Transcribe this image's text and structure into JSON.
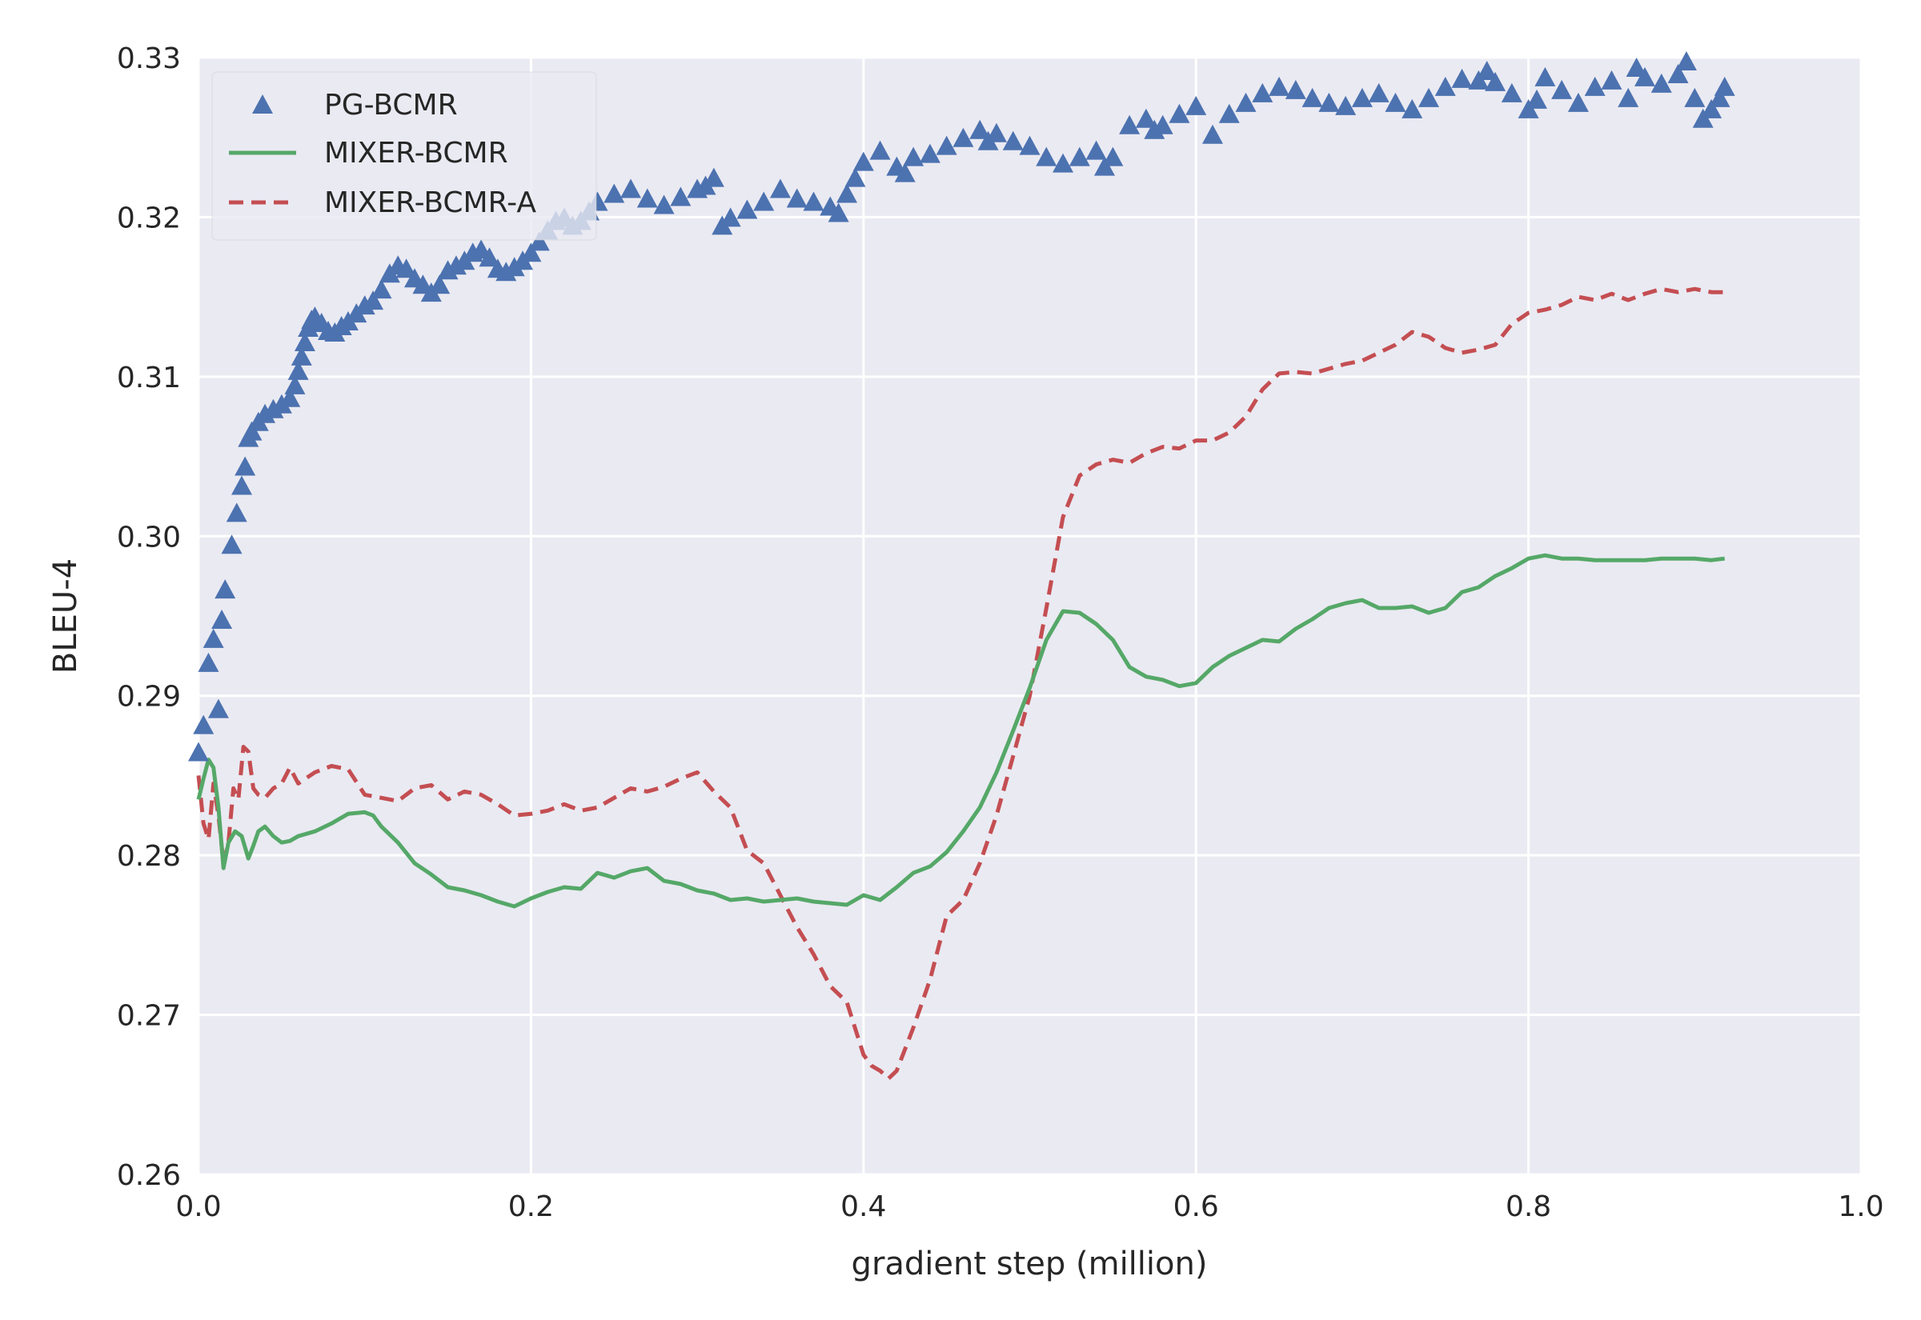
{
  "chart_data": {
    "type": "line",
    "title": "",
    "xlabel": "gradient step (million)",
    "ylabel": "BLEU-4",
    "xlim": [
      0.0,
      1.0
    ],
    "ylim": [
      0.26,
      0.33
    ],
    "xticks": [
      0.0,
      0.2,
      0.4,
      0.6,
      0.8,
      1.0
    ],
    "xtick_labels": [
      "0.0",
      "0.2",
      "0.4",
      "0.6",
      "0.8",
      "1.0"
    ],
    "yticks": [
      0.26,
      0.27,
      0.28,
      0.29,
      0.3,
      0.31,
      0.32,
      0.33
    ],
    "ytick_labels": [
      "0.26",
      "0.27",
      "0.28",
      "0.29",
      "0.30",
      "0.31",
      "0.32",
      "0.33"
    ],
    "grid": true,
    "legend_position": "top-left",
    "colors": {
      "background": "#eaeaf2",
      "grid": "#ffffff",
      "pg": "#4c72b0",
      "mixer": "#55a868",
      "mixer_a": "#c44e52"
    },
    "series": [
      {
        "name": "PG-BCMR",
        "style": "triangle-markers",
        "x": [
          0.0,
          0.003,
          0.006,
          0.009,
          0.012,
          0.014,
          0.016,
          0.02,
          0.023,
          0.026,
          0.028,
          0.03,
          0.032,
          0.036,
          0.04,
          0.045,
          0.05,
          0.055,
          0.058,
          0.06,
          0.062,
          0.064,
          0.066,
          0.068,
          0.07,
          0.074,
          0.078,
          0.082,
          0.086,
          0.09,
          0.095,
          0.1,
          0.105,
          0.11,
          0.115,
          0.12,
          0.125,
          0.13,
          0.135,
          0.14,
          0.145,
          0.15,
          0.155,
          0.16,
          0.165,
          0.17,
          0.175,
          0.18,
          0.185,
          0.19,
          0.195,
          0.2,
          0.205,
          0.21,
          0.215,
          0.22,
          0.225,
          0.23,
          0.235,
          0.24,
          0.25,
          0.26,
          0.27,
          0.28,
          0.29,
          0.3,
          0.305,
          0.31,
          0.315,
          0.32,
          0.33,
          0.34,
          0.35,
          0.36,
          0.37,
          0.38,
          0.385,
          0.39,
          0.395,
          0.4,
          0.41,
          0.42,
          0.425,
          0.43,
          0.44,
          0.45,
          0.46,
          0.47,
          0.475,
          0.48,
          0.49,
          0.5,
          0.51,
          0.52,
          0.53,
          0.54,
          0.545,
          0.55,
          0.56,
          0.57,
          0.575,
          0.58,
          0.59,
          0.6,
          0.61,
          0.62,
          0.63,
          0.64,
          0.65,
          0.66,
          0.67,
          0.68,
          0.69,
          0.7,
          0.71,
          0.72,
          0.73,
          0.74,
          0.75,
          0.76,
          0.77,
          0.775,
          0.78,
          0.79,
          0.8,
          0.805,
          0.81,
          0.82,
          0.83,
          0.84,
          0.85,
          0.86,
          0.865,
          0.87,
          0.88,
          0.89,
          0.895,
          0.9,
          0.905,
          0.91,
          0.915,
          0.918
        ],
        "y": [
          0.2865,
          0.2882,
          0.2921,
          0.2936,
          0.2892,
          0.2948,
          0.2967,
          0.2995,
          0.3015,
          0.3032,
          0.3044,
          0.3062,
          0.3066,
          0.3072,
          0.3077,
          0.308,
          0.3083,
          0.3087,
          0.3095,
          0.3104,
          0.3113,
          0.3122,
          0.3131,
          0.3136,
          0.3138,
          0.3134,
          0.3129,
          0.3128,
          0.3132,
          0.3135,
          0.314,
          0.3145,
          0.3148,
          0.3155,
          0.3165,
          0.317,
          0.3168,
          0.3162,
          0.3158,
          0.3153,
          0.3158,
          0.3167,
          0.317,
          0.3173,
          0.3178,
          0.318,
          0.3175,
          0.3168,
          0.3166,
          0.3169,
          0.3173,
          0.3178,
          0.3185,
          0.3192,
          0.3198,
          0.32,
          0.3195,
          0.3198,
          0.3204,
          0.321,
          0.3215,
          0.3218,
          0.3212,
          0.3208,
          0.3213,
          0.3218,
          0.322,
          0.3225,
          0.3195,
          0.32,
          0.3205,
          0.321,
          0.3218,
          0.3212,
          0.321,
          0.3207,
          0.3203,
          0.3215,
          0.3225,
          0.3235,
          0.3242,
          0.3232,
          0.3228,
          0.3238,
          0.324,
          0.3245,
          0.325,
          0.3255,
          0.3248,
          0.3253,
          0.3248,
          0.3245,
          0.3238,
          0.3234,
          0.3238,
          0.3242,
          0.3232,
          0.3238,
          0.3258,
          0.3262,
          0.3255,
          0.3258,
          0.3265,
          0.327,
          0.3252,
          0.3265,
          0.3272,
          0.3278,
          0.3282,
          0.328,
          0.3275,
          0.3272,
          0.327,
          0.3275,
          0.3278,
          0.3272,
          0.3268,
          0.3275,
          0.3282,
          0.3287,
          0.3286,
          0.3292,
          0.3285,
          0.3278,
          0.3268,
          0.3274,
          0.3288,
          0.328,
          0.3272,
          0.3282,
          0.3286,
          0.3275,
          0.3294,
          0.3288,
          0.3284,
          0.329,
          0.3298,
          0.3275,
          0.3262,
          0.3268,
          0.3275,
          0.3282
        ]
      },
      {
        "name": "MIXER-BCMR",
        "style": "solid",
        "x": [
          0.0,
          0.003,
          0.006,
          0.009,
          0.012,
          0.015,
          0.018,
          0.022,
          0.026,
          0.03,
          0.033,
          0.036,
          0.04,
          0.045,
          0.05,
          0.055,
          0.06,
          0.07,
          0.08,
          0.09,
          0.1,
          0.105,
          0.11,
          0.12,
          0.13,
          0.14,
          0.15,
          0.16,
          0.17,
          0.18,
          0.19,
          0.2,
          0.21,
          0.22,
          0.23,
          0.24,
          0.25,
          0.26,
          0.27,
          0.28,
          0.29,
          0.3,
          0.31,
          0.32,
          0.33,
          0.34,
          0.35,
          0.36,
          0.37,
          0.38,
          0.39,
          0.4,
          0.41,
          0.42,
          0.43,
          0.44,
          0.45,
          0.46,
          0.47,
          0.48,
          0.49,
          0.5,
          0.51,
          0.52,
          0.53,
          0.54,
          0.55,
          0.56,
          0.57,
          0.58,
          0.59,
          0.6,
          0.61,
          0.62,
          0.63,
          0.64,
          0.65,
          0.66,
          0.67,
          0.68,
          0.69,
          0.7,
          0.71,
          0.72,
          0.73,
          0.74,
          0.75,
          0.76,
          0.77,
          0.78,
          0.79,
          0.8,
          0.81,
          0.82,
          0.83,
          0.84,
          0.85,
          0.86,
          0.87,
          0.88,
          0.89,
          0.9,
          0.91,
          0.918
        ],
        "y": [
          0.2835,
          0.2848,
          0.286,
          0.2855,
          0.283,
          0.2792,
          0.2808,
          0.2815,
          0.2812,
          0.2798,
          0.2806,
          0.2815,
          0.2818,
          0.2812,
          0.2808,
          0.2809,
          0.2812,
          0.2815,
          0.282,
          0.2826,
          0.2827,
          0.2825,
          0.2818,
          0.2808,
          0.2795,
          0.2788,
          0.278,
          0.2778,
          0.2775,
          0.2771,
          0.2768,
          0.2773,
          0.2777,
          0.278,
          0.2779,
          0.2789,
          0.2786,
          0.279,
          0.2792,
          0.2784,
          0.2782,
          0.2778,
          0.2776,
          0.2772,
          0.2773,
          0.2771,
          0.2772,
          0.2773,
          0.2771,
          0.277,
          0.2769,
          0.2775,
          0.2772,
          0.278,
          0.2789,
          0.2793,
          0.2802,
          0.2815,
          0.283,
          0.2852,
          0.2878,
          0.2905,
          0.2935,
          0.2953,
          0.2952,
          0.2945,
          0.2935,
          0.2918,
          0.2912,
          0.291,
          0.2906,
          0.2908,
          0.2918,
          0.2925,
          0.293,
          0.2935,
          0.2934,
          0.2942,
          0.2948,
          0.2955,
          0.2958,
          0.296,
          0.2955,
          0.2955,
          0.2956,
          0.2952,
          0.2955,
          0.2965,
          0.2968,
          0.2975,
          0.298,
          0.2986,
          0.2988,
          0.2986,
          0.2986,
          0.2985,
          0.2985,
          0.2985,
          0.2985,
          0.2986,
          0.2986,
          0.2986,
          0.2985,
          0.2986
        ]
      },
      {
        "name": "MIXER-BCMR-A",
        "style": "dashed",
        "x": [
          0.0,
          0.003,
          0.006,
          0.009,
          0.012,
          0.015,
          0.018,
          0.021,
          0.024,
          0.027,
          0.03,
          0.033,
          0.036,
          0.04,
          0.045,
          0.05,
          0.055,
          0.06,
          0.07,
          0.08,
          0.09,
          0.1,
          0.11,
          0.12,
          0.13,
          0.14,
          0.15,
          0.16,
          0.17,
          0.18,
          0.19,
          0.2,
          0.21,
          0.22,
          0.23,
          0.24,
          0.25,
          0.26,
          0.27,
          0.28,
          0.29,
          0.3,
          0.31,
          0.32,
          0.33,
          0.34,
          0.35,
          0.36,
          0.37,
          0.38,
          0.39,
          0.4,
          0.405,
          0.41,
          0.415,
          0.42,
          0.43,
          0.44,
          0.45,
          0.46,
          0.47,
          0.48,
          0.49,
          0.5,
          0.51,
          0.52,
          0.53,
          0.54,
          0.55,
          0.56,
          0.57,
          0.58,
          0.59,
          0.6,
          0.61,
          0.62,
          0.63,
          0.64,
          0.65,
          0.66,
          0.67,
          0.68,
          0.69,
          0.7,
          0.71,
          0.72,
          0.73,
          0.74,
          0.75,
          0.76,
          0.77,
          0.78,
          0.79,
          0.8,
          0.81,
          0.82,
          0.83,
          0.84,
          0.85,
          0.86,
          0.87,
          0.88,
          0.89,
          0.9,
          0.91,
          0.918
        ],
        "y": [
          0.285,
          0.282,
          0.281,
          0.2845,
          0.2825,
          0.2795,
          0.2808,
          0.2842,
          0.2835,
          0.2868,
          0.2865,
          0.2842,
          0.2838,
          0.2836,
          0.2842,
          0.2845,
          0.2855,
          0.2845,
          0.2852,
          0.2856,
          0.2854,
          0.2838,
          0.2836,
          0.2834,
          0.2842,
          0.2844,
          0.2835,
          0.284,
          0.2838,
          0.2832,
          0.2825,
          0.2826,
          0.2828,
          0.2832,
          0.2828,
          0.283,
          0.2836,
          0.2842,
          0.284,
          0.2843,
          0.2848,
          0.2852,
          0.284,
          0.283,
          0.2803,
          0.2795,
          0.2775,
          0.2755,
          0.2738,
          0.2718,
          0.2708,
          0.2675,
          0.2668,
          0.2665,
          0.266,
          0.2665,
          0.2692,
          0.2722,
          0.2762,
          0.2772,
          0.2795,
          0.2825,
          0.2862,
          0.29,
          0.2955,
          0.3012,
          0.3038,
          0.3045,
          0.3048,
          0.3046,
          0.3052,
          0.3056,
          0.3055,
          0.306,
          0.306,
          0.3065,
          0.3075,
          0.3092,
          0.3102,
          0.3103,
          0.3102,
          0.3105,
          0.3108,
          0.311,
          0.3115,
          0.312,
          0.3128,
          0.3125,
          0.3118,
          0.3115,
          0.3117,
          0.312,
          0.3133,
          0.314,
          0.3142,
          0.3145,
          0.315,
          0.3148,
          0.3152,
          0.3148,
          0.3152,
          0.3155,
          0.3153,
          0.3155,
          0.3153,
          0.3153
        ]
      }
    ]
  }
}
